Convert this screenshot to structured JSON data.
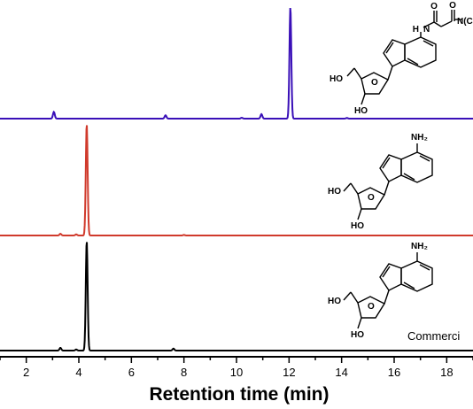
{
  "chart_data": {
    "type": "line",
    "xlabel": "Retention time (min)",
    "xlim": [
      1.0,
      19.0
    ],
    "x_ticks": [
      2,
      4,
      6,
      8,
      10,
      12,
      14,
      16,
      18
    ],
    "colors": {
      "top": "#3a10b8",
      "middle": "#d03a2c",
      "bottom": "#000000"
    },
    "series": [
      {
        "id": "top",
        "peaks": [
          {
            "rt": 3.05,
            "height": 0.06
          },
          {
            "rt": 7.3,
            "height": 0.03
          },
          {
            "rt": 10.2,
            "height": 0.008
          },
          {
            "rt": 10.95,
            "height": 0.04
          },
          {
            "rt": 12.05,
            "height": 1.0
          },
          {
            "rt": 14.2,
            "height": 0.006
          }
        ]
      },
      {
        "id": "middle",
        "peaks": [
          {
            "rt": 3.3,
            "height": 0.015
          },
          {
            "rt": 3.9,
            "height": 0.01
          },
          {
            "rt": 4.3,
            "height": 1.0
          },
          {
            "rt": 8.0,
            "height": 0.005
          }
        ]
      },
      {
        "id": "bottom",
        "peaks": [
          {
            "rt": 3.3,
            "height": 0.025
          },
          {
            "rt": 3.9,
            "height": 0.01
          },
          {
            "rt": 4.3,
            "height": 1.0
          },
          {
            "rt": 7.6,
            "height": 0.018
          }
        ]
      }
    ],
    "structures": {
      "top": {
        "ho1": "HO",
        "ho2": "HO",
        "nh": "H",
        "n_amine": "N",
        "cation": "N(C"
      },
      "middle": {
        "ho1": "HO",
        "ho2": "HO",
        "nh2": "NH₂"
      },
      "bottom": {
        "ho1": "HO",
        "ho2": "HO",
        "nh2": "NH₂",
        "note": "Commerci"
      }
    }
  }
}
